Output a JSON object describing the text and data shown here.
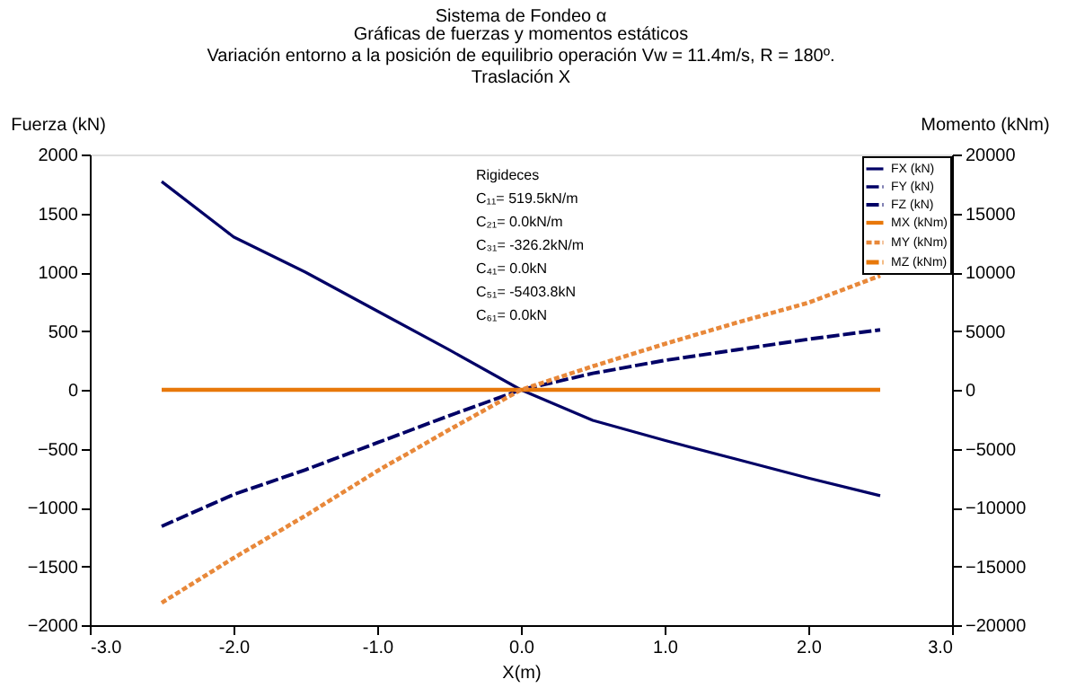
{
  "chart_data": {
    "type": "line",
    "title": "Sistema de Fondeo α",
    "subtitle": "Gráficas de fuerzas y  momentos estáticos\nVariación entorno a la posición de equilibrio operación Vw = 11.4m/s, R = 180º.\nTraslación X",
    "xlabel": "X(m)",
    "ylabel": "Fuerza (kN)",
    "y2label": "Momento (kNm)",
    "x": [
      -2.5,
      -2.0,
      -1.5,
      -1.0,
      -0.5,
      0.0,
      0.5,
      1.0,
      1.5,
      2.0,
      2.5
    ],
    "series": [
      {
        "name": "FX (kN)",
        "color": "#000066",
        "line_style": "solid",
        "values": [
          1770,
          1300,
          1000,
          670,
          340,
          0,
          -260,
          -430,
          -590,
          -750,
          -900
        ]
      },
      {
        "name": "FY (kN)",
        "color": "#000066",
        "line_style": "dashed",
        "values": [
          null,
          null,
          null,
          null,
          null,
          null,
          null,
          null,
          null,
          null,
          null
        ]
      },
      {
        "name": "FZ (kN)",
        "color": "#000066",
        "line_style": "dashed",
        "values": [
          -1160,
          -890,
          -680,
          -450,
          -220,
          0,
          140,
          250,
          340,
          430,
          510
        ]
      },
      {
        "name": "MX (kNm)",
        "color": "#e8780a",
        "line_style": "solid",
        "axis": "y2",
        "values": [
          0,
          0,
          0,
          0,
          0,
          0,
          0,
          0,
          0,
          0,
          0
        ]
      },
      {
        "name": "MY (kNm)",
        "color": "#e8883a",
        "line_style": "dotted",
        "axis": "y2",
        "values": [
          -18100,
          -14300,
          -10700,
          -6900,
          -3400,
          0,
          2000,
          3900,
          5700,
          7400,
          9700
        ]
      },
      {
        "name": "MZ (kNm)",
        "color": "#e8780a",
        "line_style": "dashed",
        "axis": "y2",
        "values": [
          null,
          null,
          null,
          null,
          null,
          null,
          null,
          null,
          null,
          null,
          null
        ]
      }
    ],
    "xlim": [
      -3,
      3
    ],
    "xticks": [
      {
        "value": -3,
        "label": "-3.0"
      },
      {
        "value": -2,
        "label": "-2.0"
      },
      {
        "value": -1,
        "label": "-1.0"
      },
      {
        "value": 0,
        "label": "0.0"
      },
      {
        "value": 1,
        "label": "1.0"
      },
      {
        "value": 2,
        "label": "2.0"
      },
      {
        "value": 3,
        "label": "3.0"
      }
    ],
    "ylim": [
      -2000,
      2000
    ],
    "yticks": [
      -2000,
      -1500,
      -1000,
      -500,
      0,
      500,
      1000,
      1500,
      2000
    ],
    "y2lim": [
      -20000,
      20000
    ],
    "y2ticks": [
      -20000,
      -15000,
      -10000,
      -5000,
      0,
      5000,
      10000,
      15000,
      20000
    ],
    "legend": "top right",
    "annotations": [
      "Rigideces",
      "C₁₁=    519.5kN/m",
      "C₂₁=        0.0kN/m",
      "C₃₁=   -326.2kN/m",
      "C₄₁=          0.0kN",
      "C₅₁=   -5403.8kN",
      "C₆₁=          0.0kN"
    ]
  }
}
